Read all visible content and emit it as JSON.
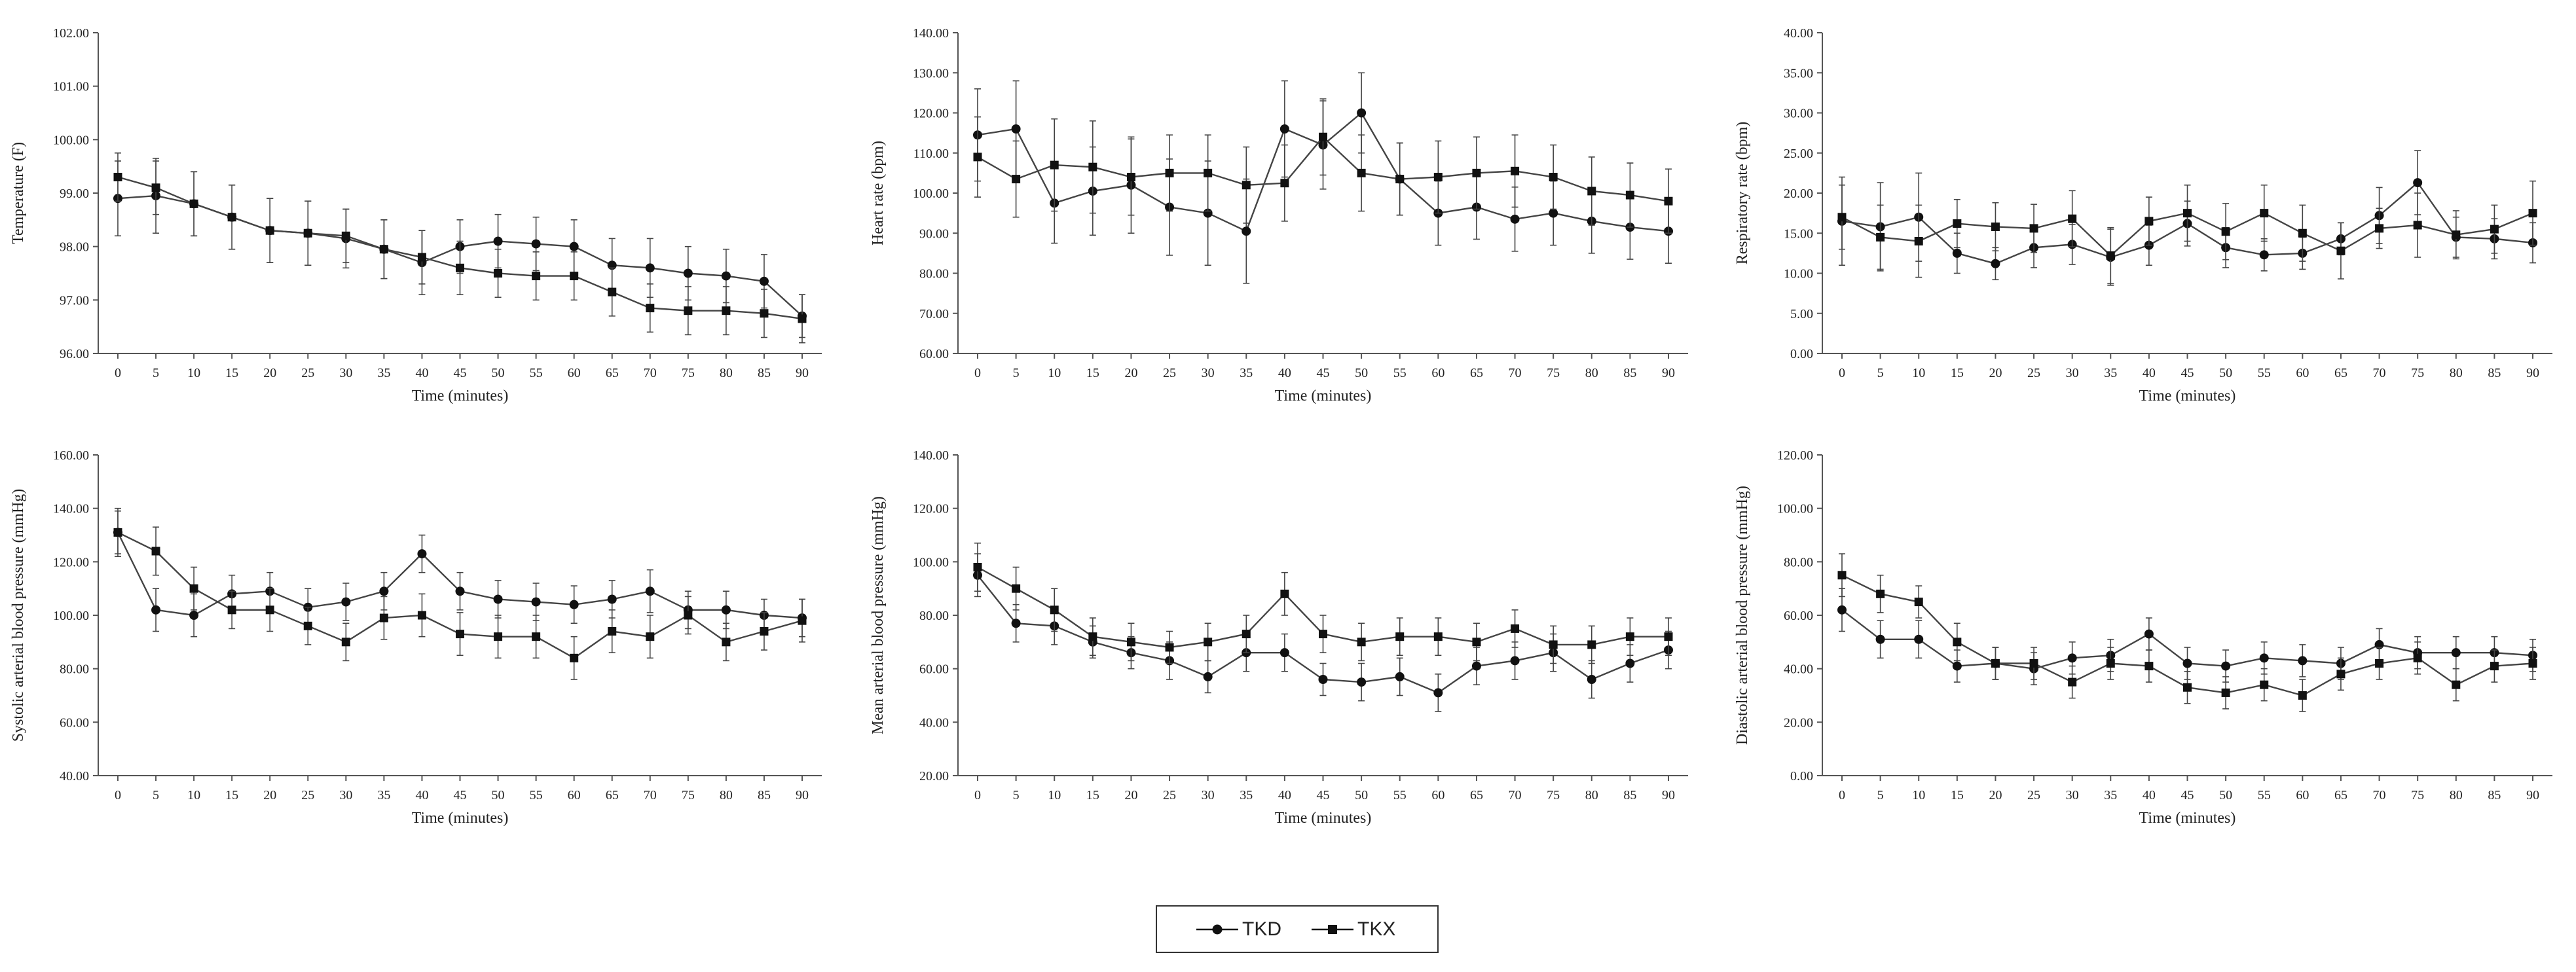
{
  "legend": {
    "tkd_label": "TKD",
    "tkx_label": "TKX"
  },
  "chart_data": [
    {
      "type": "line",
      "xlabel": "Time (minutes)",
      "ylabel": "Temperature (F)",
      "ylim": [
        96,
        102
      ],
      "ystep": 1,
      "ydecimals": 2,
      "x": [
        0,
        5,
        10,
        15,
        20,
        25,
        30,
        35,
        40,
        45,
        50,
        55,
        60,
        65,
        70,
        75,
        80,
        85,
        90
      ],
      "series": [
        {
          "name": "TKD",
          "marker": "circle",
          "values": [
            98.9,
            98.95,
            98.8,
            98.55,
            98.3,
            98.25,
            98.15,
            97.95,
            97.7,
            98.0,
            98.1,
            98.05,
            98.0,
            97.65,
            97.6,
            97.5,
            97.45,
            97.35,
            96.7
          ],
          "errors": [
            0.7,
            0.7,
            0.6,
            0.6,
            0.6,
            0.6,
            0.55,
            0.55,
            0.6,
            0.5,
            0.5,
            0.5,
            0.5,
            0.5,
            0.55,
            0.5,
            0.5,
            0.5,
            0.4
          ]
        },
        {
          "name": "TKX",
          "marker": "square",
          "values": [
            99.3,
            99.1,
            98.8,
            98.55,
            98.3,
            98.25,
            98.2,
            97.95,
            97.8,
            97.6,
            97.5,
            97.45,
            97.45,
            97.15,
            96.85,
            96.8,
            96.8,
            96.75,
            96.65
          ],
          "errors": [
            0.45,
            0.5,
            0.6,
            0.6,
            0.6,
            0.6,
            0.5,
            0.55,
            0.5,
            0.5,
            0.45,
            0.45,
            0.45,
            0.45,
            0.45,
            0.45,
            0.45,
            0.45,
            0.45
          ]
        }
      ]
    },
    {
      "type": "line",
      "xlabel": "Time (minutes)",
      "ylabel": "Heart rate (bpm)",
      "ylim": [
        60,
        140
      ],
      "ystep": 10,
      "ydecimals": 2,
      "x": [
        0,
        5,
        10,
        15,
        20,
        25,
        30,
        35,
        40,
        45,
        50,
        55,
        60,
        65,
        70,
        75,
        80,
        85,
        90
      ],
      "series": [
        {
          "name": "TKD",
          "marker": "circle",
          "values": [
            114.5,
            116,
            97.5,
            100.5,
            102,
            96.5,
            95,
            90.5,
            116,
            112,
            120,
            103.5,
            95,
            96.5,
            93.5,
            95,
            93,
            91.5,
            90.5
          ],
          "errors": [
            11.5,
            12,
            10,
            11,
            12,
            12,
            13,
            13,
            12,
            11,
            10,
            9,
            8,
            8,
            8,
            8,
            8,
            8,
            8
          ]
        },
        {
          "name": "TKX",
          "marker": "square",
          "values": [
            109,
            103.5,
            107,
            106.5,
            104,
            105,
            105,
            102,
            102.5,
            114,
            105,
            103.5,
            104,
            105,
            105.5,
            104,
            100.5,
            99.5,
            98
          ],
          "errors": [
            10,
            9.5,
            11.5,
            11.5,
            9.5,
            9.5,
            9.5,
            9.5,
            9.5,
            9.5,
            9.5,
            9,
            9,
            9,
            9,
            8,
            8.5,
            8,
            8
          ]
        }
      ]
    },
    {
      "type": "line",
      "xlabel": "Time (minutes)",
      "ylabel": "Respiratory rate (bpm)",
      "ylim": [
        0,
        40
      ],
      "ystep": 5,
      "ydecimals": 2,
      "x": [
        0,
        5,
        10,
        15,
        20,
        25,
        30,
        35,
        40,
        45,
        50,
        55,
        60,
        65,
        70,
        75,
        80,
        85,
        90
      ],
      "series": [
        {
          "name": "TKD",
          "marker": "circle",
          "values": [
            16.5,
            15.8,
            17,
            12.5,
            11.2,
            13.2,
            13.6,
            12,
            13.5,
            16.2,
            13.2,
            12.3,
            12.5,
            14.3,
            17.2,
            21.3,
            14.5,
            14.3,
            13.8
          ],
          "errors": [
            5.5,
            5.5,
            5.5,
            2.5,
            2,
            2.5,
            2.5,
            3.5,
            2.5,
            2.8,
            2.5,
            2,
            2,
            2,
            3.5,
            4,
            2.5,
            2.5,
            2.5
          ]
        },
        {
          "name": "TKX",
          "marker": "square",
          "values": [
            17,
            14.5,
            14,
            16.2,
            15.8,
            15.6,
            16.8,
            12.2,
            16.5,
            17.5,
            15.2,
            17.5,
            15,
            12.8,
            15.6,
            16,
            14.8,
            15.5,
            17.5
          ],
          "errors": [
            4,
            4,
            4.5,
            3,
            3,
            3,
            3.5,
            3.5,
            3,
            3.5,
            3.5,
            3.5,
            3.5,
            3.5,
            2.5,
            4,
            3,
            3,
            4
          ]
        }
      ]
    },
    {
      "type": "line",
      "xlabel": "Time (minutes)",
      "ylabel": "Systolic arterial blood pressure (mmHg)",
      "ylim": [
        40,
        160
      ],
      "ystep": 20,
      "ydecimals": 2,
      "x": [
        0,
        5,
        10,
        15,
        20,
        25,
        30,
        35,
        40,
        45,
        50,
        55,
        60,
        65,
        70,
        75,
        80,
        85,
        90
      ],
      "series": [
        {
          "name": "TKD",
          "marker": "circle",
          "values": [
            131,
            102,
            100,
            108,
            109,
            103,
            105,
            109,
            123,
            109,
            106,
            105,
            104,
            106,
            109,
            102,
            102,
            100,
            99
          ],
          "errors": [
            9,
            8,
            8,
            7,
            7,
            7,
            7,
            7,
            7,
            7,
            7,
            7,
            7,
            7,
            8,
            7,
            7,
            6,
            7
          ]
        },
        {
          "name": "TKX",
          "marker": "square",
          "values": [
            131,
            124,
            110,
            102,
            102,
            96,
            90,
            99,
            100,
            93,
            92,
            92,
            84,
            94,
            92,
            100,
            90,
            94,
            98
          ],
          "errors": [
            8,
            9,
            8,
            7,
            8,
            7,
            7,
            8,
            8,
            8,
            8,
            8,
            8,
            8,
            8,
            7,
            7,
            7,
            8
          ]
        }
      ]
    },
    {
      "type": "line",
      "xlabel": "Time (minutes)",
      "ylabel": "Mean arterial blood pressure (mmHg)",
      "ylim": [
        20,
        140
      ],
      "ystep": 20,
      "ydecimals": 2,
      "x": [
        0,
        5,
        10,
        15,
        20,
        25,
        30,
        35,
        40,
        45,
        50,
        55,
        60,
        65,
        70,
        75,
        80,
        85,
        90
      ],
      "series": [
        {
          "name": "TKD",
          "marker": "circle",
          "values": [
            95,
            77,
            76,
            70,
            66,
            63,
            57,
            66,
            66,
            56,
            55,
            57,
            51,
            61,
            63,
            66,
            56,
            62,
            67
          ],
          "errors": [
            8,
            7,
            7,
            6,
            6,
            7,
            6,
            7,
            7,
            6,
            7,
            7,
            7,
            7,
            7,
            7,
            7,
            7,
            7
          ]
        },
        {
          "name": "TKX",
          "marker": "square",
          "values": [
            98,
            90,
            82,
            72,
            70,
            68,
            70,
            73,
            88,
            73,
            70,
            72,
            72,
            70,
            75,
            69,
            69,
            72,
            72
          ],
          "errors": [
            9,
            8,
            8,
            7,
            7,
            6,
            7,
            7,
            8,
            7,
            7,
            7,
            7,
            7,
            7,
            7,
            7,
            7,
            7
          ]
        }
      ]
    },
    {
      "type": "line",
      "xlabel": "Time (minutes)",
      "ylabel": "Diastolic arterial blood pressure (mmHg)",
      "ylim": [
        0,
        120
      ],
      "ystep": 20,
      "ydecimals": 2,
      "x": [
        0,
        5,
        10,
        15,
        20,
        25,
        30,
        35,
        40,
        45,
        50,
        55,
        60,
        65,
        70,
        75,
        80,
        85,
        90
      ],
      "series": [
        {
          "name": "TKD",
          "marker": "circle",
          "values": [
            62,
            51,
            51,
            41,
            42,
            40,
            44,
            45,
            53,
            42,
            41,
            44,
            43,
            42,
            49,
            46,
            46,
            46,
            45
          ],
          "errors": [
            8,
            7,
            7,
            6,
            6,
            6,
            6,
            6,
            6,
            6,
            6,
            6,
            6,
            6,
            6,
            6,
            6,
            6,
            6
          ]
        },
        {
          "name": "TKX",
          "marker": "square",
          "values": [
            75,
            68,
            65,
            50,
            42,
            42,
            35,
            42,
            41,
            33,
            31,
            34,
            30,
            38,
            42,
            44,
            34,
            41,
            42
          ],
          "errors": [
            8,
            7,
            6,
            7,
            6,
            6,
            6,
            6,
            6,
            6,
            6,
            6,
            6,
            6,
            6,
            6,
            6,
            6,
            6
          ]
        }
      ]
    }
  ]
}
